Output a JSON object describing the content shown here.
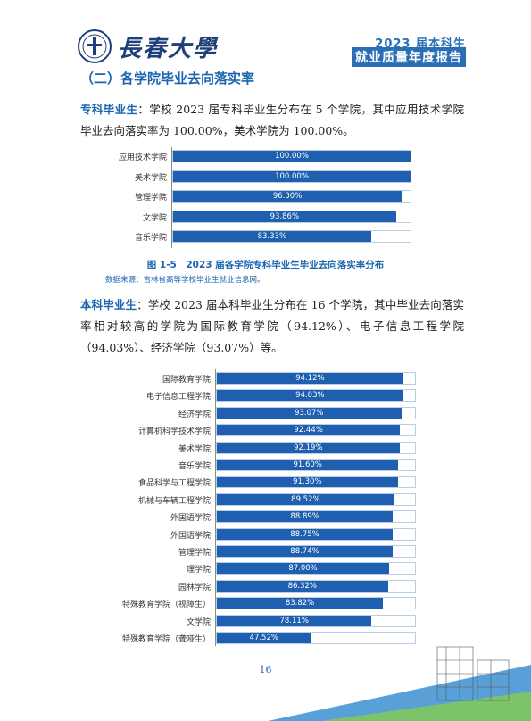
{
  "header": {
    "university_name": "長春大學",
    "report_line1": "2023 届本科生",
    "report_line2": "就业质量年度报告"
  },
  "section": {
    "title": "（二）各学院毕业去向落实率"
  },
  "zhuanke": {
    "lead": "专科毕业生",
    "text": "：学校 2023 届专科毕业生分布在 5 个学院，其中应用技术学院毕业去向落实率为 100.00%，美术学院为 100.00%。"
  },
  "benke": {
    "lead": "本科毕业生",
    "text": "：学校 2023 届本科毕业生分布在 16 个学院，其中毕业去向落实率相对较高的学院为国际教育学院（94.12%）、电子信息工程学院（94.03%）、经济学院（93.07%）等。"
  },
  "figure_caption": "图 1-5　2023 届各学院专科毕业生毕业去向落实率分布",
  "source_note": "数据来源：吉林省高等学校毕业生就业信息网。",
  "page_number": "16",
  "colors": {
    "accent": "#1a64b0",
    "bar": "#1f5fb0"
  },
  "chart_data": [
    {
      "type": "bar",
      "orientation": "horizontal",
      "categories": [
        "应用技术学院",
        "美术学院",
        "管理学院",
        "文学院",
        "音乐学院"
      ],
      "values": [
        100.0,
        100.0,
        96.3,
        93.86,
        83.33
      ],
      "labels": [
        "100.00%",
        "100.00%",
        "96.30%",
        "93.86%",
        "83.33%"
      ],
      "xlim": [
        0,
        100
      ]
    },
    {
      "type": "bar",
      "orientation": "horizontal",
      "categories": [
        "国际教育学院",
        "电子信息工程学院",
        "经济学院",
        "计算机科学技术学院",
        "美术学院",
        "音乐学院",
        "食品科学与工程学院",
        "机械与车辆工程学院",
        "外国语学院",
        "外国语学院",
        "管理学院",
        "理学院",
        "园林学院",
        "特殊教育学院（视障生）",
        "文学院",
        "特殊教育学院（聋哑生）"
      ],
      "values": [
        94.12,
        94.03,
        93.07,
        92.44,
        92.19,
        91.6,
        91.3,
        89.52,
        88.89,
        88.75,
        88.74,
        87.0,
        86.32,
        83.82,
        78.11,
        47.52
      ],
      "labels": [
        "94.12%",
        "94.03%",
        "93.07%",
        "92.44%",
        "92.19%",
        "91.60%",
        "91.30%",
        "89.52%",
        "88.89%",
        "88.75%",
        "88.74%",
        "87.00%",
        "86.32%",
        "83.82%",
        "78.11%",
        "47.52%"
      ],
      "xlim": [
        0,
        100
      ]
    }
  ]
}
